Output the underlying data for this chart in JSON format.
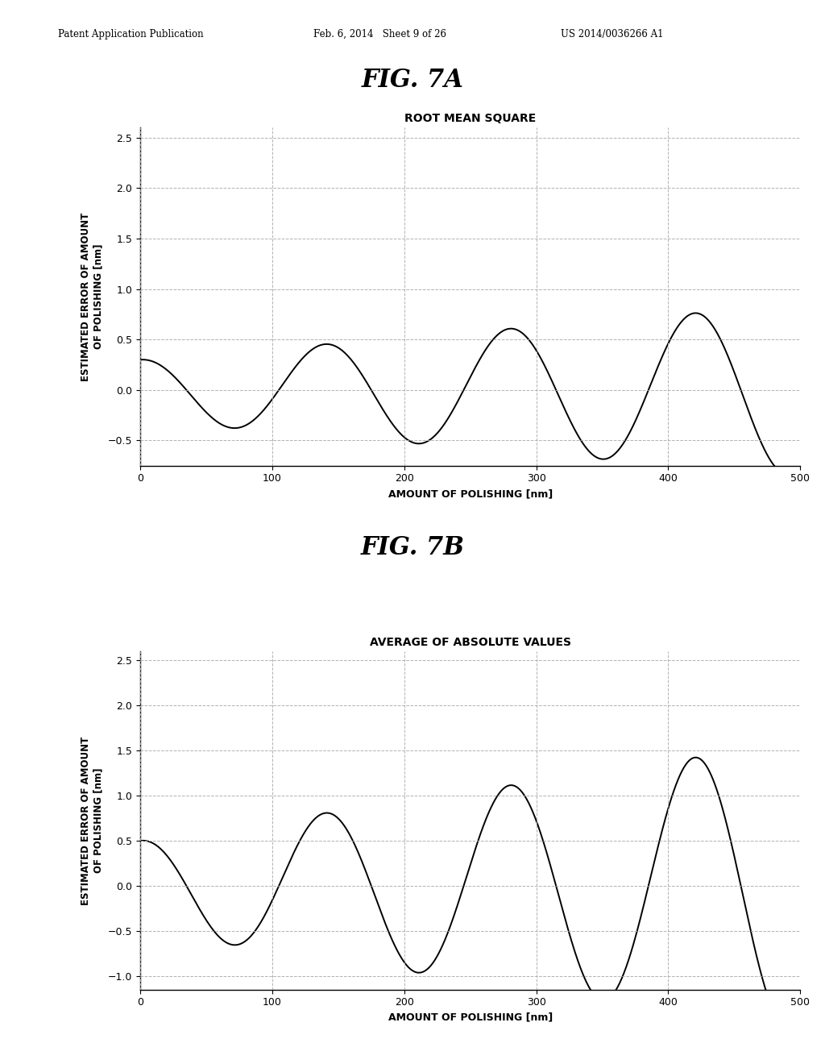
{
  "fig_title_a": "FIG. 7A",
  "fig_title_b": "FIG. 7B",
  "chart_title_a": "ROOT MEAN SQUARE",
  "chart_title_b": "AVERAGE OF ABSOLUTE VALUES",
  "xlabel": "AMOUNT OF POLISHING [nm]",
  "ylabel_line1": "ESTIMATED ERROR OF AMOUNT",
  "ylabel_line2": "OF POLISHING [nm]",
  "header_left": "Patent Application Publication",
  "header_mid": "Feb. 6, 2014   Sheet 9 of 26",
  "header_right": "US 2014/0036266 A1",
  "xlim": [
    0,
    500
  ],
  "ylim_a": [
    -0.75,
    2.6
  ],
  "ylim_b": [
    -1.15,
    2.6
  ],
  "yticks_a": [
    -0.5,
    0,
    0.5,
    1,
    1.5,
    2,
    2.5
  ],
  "yticks_b": [
    -1,
    -0.5,
    0,
    0.5,
    1,
    1.5,
    2,
    2.5
  ],
  "xticks": [
    0,
    100,
    200,
    300,
    400,
    500
  ],
  "background_color": "#ffffff",
  "line_color": "#000000",
  "grid_color": "#aaaaaa",
  "amp_a_start": 0.3,
  "amp_a_end": 0.85,
  "amp_b_start": 0.5,
  "amp_b_end": 1.6,
  "period_nm": 140,
  "n_points": 3000
}
